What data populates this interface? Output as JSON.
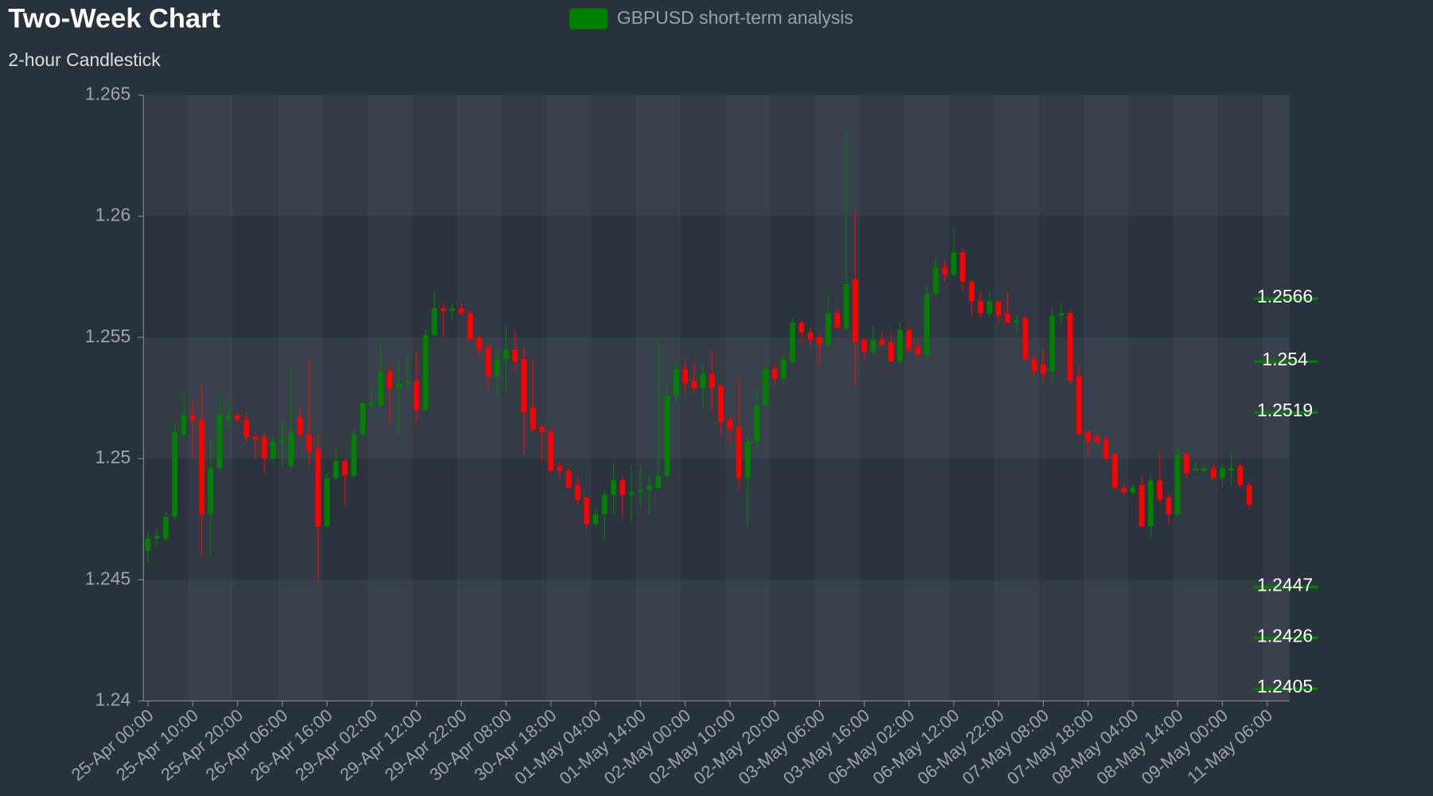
{
  "chart_data": {
    "type": "candlestick",
    "title": "Two-Week Chart",
    "subtitle": "2-hour Candlestick",
    "categories": [
      "25-Apr 00:00",
      null,
      null,
      null,
      null,
      "25-Apr 10:00",
      null,
      null,
      null,
      null,
      "25-Apr 20:00",
      null,
      null,
      null,
      null,
      "26-Apr 06:00",
      null,
      null,
      null,
      null,
      "26-Apr 16:00",
      null,
      null,
      null,
      null,
      "29-Apr 02:00",
      null,
      null,
      null,
      null,
      "29-Apr 12:00",
      null,
      null,
      null,
      null,
      "29-Apr 22:00",
      null,
      null,
      null,
      null,
      "30-Apr 08:00",
      null,
      null,
      null,
      null,
      "30-Apr 18:00",
      null,
      null,
      null,
      null,
      "01-May 04:00",
      null,
      null,
      null,
      null,
      "01-May 14:00",
      null,
      null,
      null,
      null,
      "02-May 00:00",
      null,
      null,
      null,
      null,
      "02-May 10:00",
      null,
      null,
      null,
      null,
      "02-May 20:00",
      null,
      null,
      null,
      null,
      "03-May 06:00",
      null,
      null,
      null,
      null,
      "03-May 16:00",
      null,
      null,
      null,
      null,
      "06-May 02:00",
      null,
      null,
      null,
      null,
      "06-May 12:00",
      null,
      null,
      null,
      null,
      "06-May 22:00",
      null,
      null,
      null,
      null,
      "07-May 08:00",
      null,
      null,
      null,
      null,
      "07-May 18:00",
      null,
      null,
      null,
      null,
      "08-May 04:00",
      null,
      null,
      null,
      null,
      "08-May 14:00",
      null,
      null,
      null,
      null,
      "09-May 00:00",
      null,
      null,
      null,
      null,
      "11-May 06:00"
    ],
    "series": [
      {
        "name": "GBPUSD short-term analysis",
        "color": "#008000",
        "open": [
          1.2462,
          1.2467,
          1.2467,
          1.2476,
          1.251,
          1.2518,
          1.2516,
          1.2477,
          1.2496,
          1.2516,
          1.2518,
          1.2516,
          1.2509,
          1.2509,
          1.25,
          1.2507,
          1.2497,
          1.2517,
          1.251,
          1.2504,
          1.2472,
          1.2492,
          1.2499,
          1.2493,
          1.251,
          1.2522,
          1.2522,
          1.2536,
          1.2529,
          1.2531,
          1.2532,
          1.252,
          1.2551,
          1.2562,
          1.2561,
          1.2562,
          1.256,
          1.255,
          1.2546,
          1.2534,
          1.2541,
          1.2545,
          1.2541,
          1.2521,
          1.2513,
          1.2511,
          1.2497,
          1.2495,
          1.2489,
          1.2484,
          1.2473,
          1.2477,
          1.2485,
          1.2491,
          1.2485,
          1.2486,
          1.2487,
          1.2488,
          1.2493,
          1.2526,
          1.2537,
          1.2532,
          1.2529,
          1.2535,
          1.253,
          1.2516,
          1.2513,
          1.2492,
          1.2507,
          1.2522,
          1.2537,
          1.2533,
          1.254,
          1.2556,
          1.2552,
          1.255,
          1.2547,
          1.256,
          1.2554,
          1.2574,
          1.2549,
          1.2544,
          1.2549,
          1.2548,
          1.254,
          1.2553,
          1.2546,
          1.2543,
          1.2568,
          1.2579,
          1.2576,
          1.2585,
          1.2573,
          1.2565,
          1.256,
          1.2565,
          1.256,
          1.2556,
          1.2558,
          1.2541,
          1.2539,
          1.2536,
          1.2559,
          1.256,
          1.2534,
          1.2511,
          1.2509,
          1.2508,
          1.2502,
          1.2488,
          1.2486,
          1.2489,
          1.2472,
          1.2491,
          1.2484,
          1.2477,
          1.2502,
          1.2495,
          1.2495,
          1.2496,
          1.2492,
          1.2495,
          1.2497,
          1.2489,
          null,
          null
        ],
        "high": [
          1.247,
          1.2471,
          1.2478,
          1.2514,
          1.2527,
          1.2524,
          1.2531,
          1.2508,
          1.2527,
          1.2527,
          1.2519,
          1.2519,
          1.2511,
          1.2511,
          1.2509,
          1.2516,
          1.2537,
          1.2521,
          1.2541,
          1.251,
          1.2494,
          1.2505,
          1.25,
          1.2512,
          1.2524,
          1.2528,
          1.2547,
          1.2539,
          1.2541,
          1.2543,
          1.2544,
          1.2553,
          1.2569,
          1.2564,
          1.2564,
          1.2564,
          1.2561,
          1.2551,
          1.2547,
          1.2545,
          1.2555,
          1.2553,
          1.2546,
          1.2541,
          1.2515,
          1.2513,
          1.2499,
          1.2496,
          1.2493,
          1.2484,
          1.248,
          1.2487,
          1.2498,
          1.2493,
          1.2497,
          1.2497,
          1.2493,
          1.2549,
          1.2531,
          1.254,
          1.254,
          1.254,
          1.2538,
          1.2545,
          1.2531,
          1.2517,
          1.2534,
          1.2509,
          1.2529,
          1.2539,
          1.2539,
          1.2543,
          1.2558,
          1.2557,
          1.2554,
          1.2552,
          1.2568,
          1.2562,
          1.2634,
          1.2602,
          1.255,
          1.2555,
          1.2552,
          1.2553,
          1.2556,
          1.2555,
          1.2549,
          1.2571,
          1.2583,
          1.2582,
          1.2595,
          1.2587,
          1.2574,
          1.2569,
          1.2569,
          1.2565,
          1.2569,
          1.2559,
          1.2559,
          1.2543,
          1.2545,
          1.2562,
          1.2564,
          1.2561,
          1.2538,
          1.2512,
          1.251,
          1.2509,
          1.2503,
          1.249,
          1.249,
          1.2493,
          1.2493,
          1.2502,
          1.2485,
          1.2505,
          1.2503,
          1.2498,
          1.2497,
          1.2498,
          1.2498,
          1.2502,
          1.2498,
          1.249,
          null,
          null
        ],
        "low": [
          1.2457,
          1.2464,
          1.2466,
          1.2475,
          1.2509,
          1.25,
          1.246,
          1.246,
          1.2495,
          1.2512,
          1.2515,
          1.2507,
          1.25,
          1.2494,
          1.2498,
          1.2497,
          1.2496,
          1.2508,
          1.2497,
          1.2449,
          1.2471,
          1.2491,
          1.2481,
          1.2492,
          1.2509,
          1.2521,
          1.2521,
          1.2515,
          1.251,
          1.2529,
          1.2515,
          1.252,
          1.255,
          1.255,
          1.2557,
          1.2559,
          1.2549,
          1.2542,
          1.2528,
          1.2525,
          1.2527,
          1.2536,
          1.2502,
          1.2511,
          1.2499,
          1.2494,
          1.2492,
          1.2488,
          1.2481,
          1.2471,
          1.2472,
          1.2466,
          1.2477,
          1.2476,
          1.2474,
          1.248,
          1.2477,
          1.2487,
          1.2492,
          1.2523,
          1.2527,
          1.2528,
          1.2521,
          1.2519,
          1.2509,
          1.2506,
          1.2487,
          1.2472,
          1.2503,
          1.2521,
          1.2531,
          1.2531,
          1.2539,
          1.2547,
          1.2547,
          1.2539,
          1.2546,
          1.2553,
          1.2553,
          1.253,
          1.254,
          1.2543,
          1.2546,
          1.254,
          1.2539,
          1.2544,
          1.2541,
          1.2542,
          1.2567,
          1.2573,
          1.2575,
          1.2569,
          1.2559,
          1.2558,
          1.2558,
          1.2556,
          1.2556,
          1.2551,
          1.254,
          1.2534,
          1.2531,
          1.2531,
          1.2555,
          1.2531,
          1.251,
          1.2501,
          1.2506,
          1.2499,
          1.2487,
          1.2485,
          1.2485,
          1.2471,
          1.2468,
          1.2482,
          1.2473,
          1.2476,
          1.2492,
          1.2494,
          1.2494,
          1.2491,
          1.2488,
          1.2489,
          1.2488,
          1.2479,
          null,
          null
        ],
        "close": [
          1.2467,
          1.2468,
          1.2476,
          1.2511,
          1.2518,
          1.2516,
          1.2477,
          1.2496,
          1.2518,
          1.2518,
          1.2516,
          1.2509,
          1.2508,
          1.25,
          1.2507,
          1.2508,
          1.2511,
          1.251,
          1.2503,
          1.2472,
          1.2492,
          1.2499,
          1.2493,
          1.251,
          1.2523,
          1.2523,
          1.2536,
          1.2529,
          1.2531,
          1.2532,
          1.252,
          1.2551,
          1.2562,
          1.2561,
          1.2562,
          1.256,
          1.2549,
          1.2545,
          1.2534,
          1.2541,
          1.2545,
          1.254,
          1.2519,
          1.2512,
          1.2511,
          1.2495,
          1.2495,
          1.2488,
          1.2483,
          1.2473,
          1.2477,
          1.2485,
          1.2491,
          1.2485,
          1.2486,
          1.2487,
          1.2489,
          1.2493,
          1.2526,
          1.2537,
          1.2531,
          1.2529,
          1.2535,
          1.2529,
          1.2515,
          1.2512,
          1.2492,
          1.2507,
          1.2522,
          1.2537,
          1.2533,
          1.2541,
          1.2556,
          1.2552,
          1.2549,
          1.2547,
          1.256,
          1.2554,
          1.2572,
          1.2548,
          1.2544,
          1.2549,
          1.2547,
          1.254,
          1.2553,
          1.2545,
          1.2543,
          1.2568,
          1.2579,
          1.2576,
          1.2585,
          1.2573,
          1.2565,
          1.256,
          1.2565,
          1.2559,
          1.2556,
          1.2557,
          1.2541,
          1.2536,
          1.2535,
          1.2559,
          1.256,
          1.2532,
          1.251,
          1.2507,
          1.2507,
          1.25,
          1.2488,
          1.2486,
          1.2488,
          1.2472,
          1.2491,
          1.2483,
          1.2477,
          1.2502,
          1.2494,
          1.2496,
          1.2496,
          1.2492,
          1.2496,
          1.2496,
          1.2489,
          1.2481,
          null,
          null
        ]
      }
    ],
    "up_color": "#008000",
    "down_color": "#ff0000",
    "levels": [
      1.2566,
      1.254,
      1.2519,
      1.2447,
      1.2426,
      1.2405
    ],
    "level_color": "#008000",
    "ylim": [
      1.24,
      1.265
    ],
    "yticks": [
      1.24,
      1.245,
      1.25,
      1.255,
      1.26,
      1.265
    ]
  }
}
